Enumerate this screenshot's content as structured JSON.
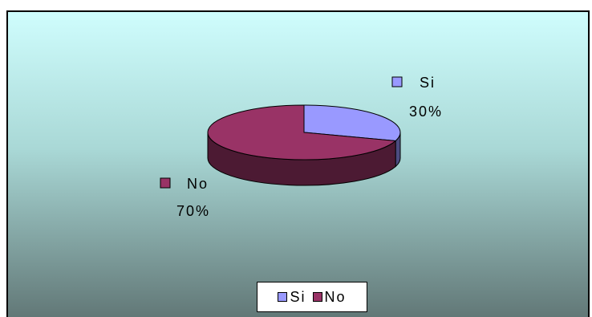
{
  "chart_data": {
    "type": "pie",
    "style": "3d",
    "categories": [
      "Si",
      "No"
    ],
    "values": [
      30,
      70
    ],
    "labels": [
      "30%",
      "70%"
    ],
    "colors": [
      "#9999ff",
      "#993366"
    ],
    "side_colors": [
      "#4c4c80",
      "#4c1a33"
    ],
    "legend": {
      "position": "bottom",
      "entries": [
        "Si",
        "No"
      ]
    },
    "title": ""
  }
}
